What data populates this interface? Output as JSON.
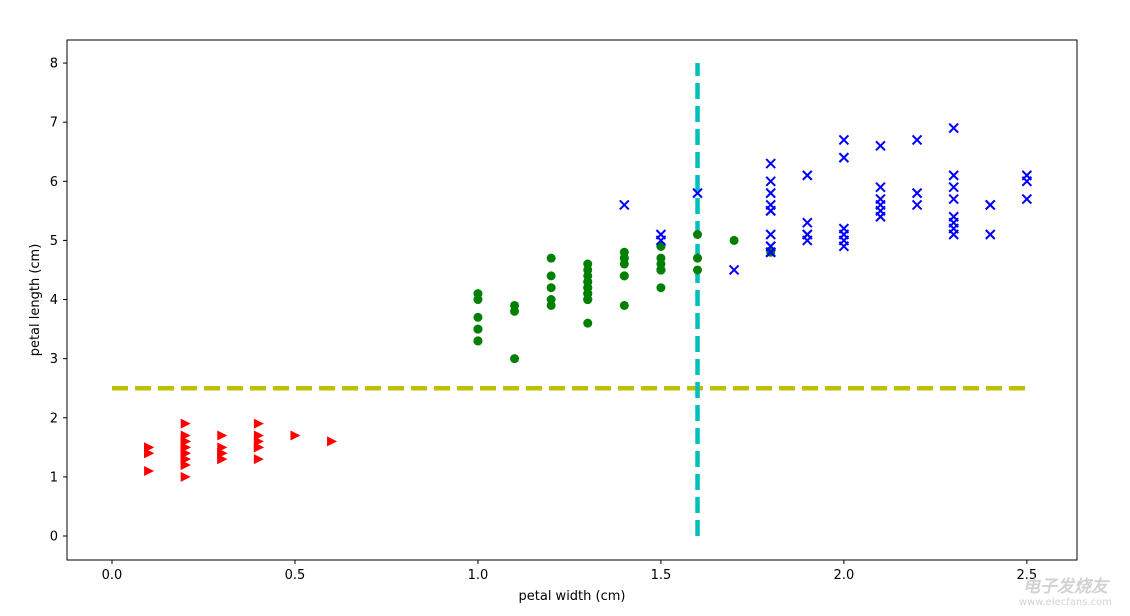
{
  "chart_data": {
    "type": "scatter",
    "title": "",
    "xlabel": "petal width (cm)",
    "ylabel": "petal length (cm)",
    "xlim": [
      -0.123,
      2.637
    ],
    "ylim": [
      -0.406,
      8.39
    ],
    "xticks": [
      0.0,
      0.5,
      1.0,
      1.5,
      2.0,
      2.5
    ],
    "xtick_labels": [
      "0.0",
      "0.5",
      "1.0",
      "1.5",
      "2.0",
      "2.5"
    ],
    "yticks": [
      0,
      1,
      2,
      3,
      4,
      5,
      6,
      7,
      8
    ],
    "ytick_labels": [
      "0",
      "1",
      "2",
      "3",
      "4",
      "5",
      "6",
      "7",
      "8"
    ],
    "grid": false,
    "series": [
      {
        "marker": "triangle-right",
        "color": "#ff0000",
        "x": [
          0.2,
          0.2,
          0.2,
          0.2,
          0.2,
          0.4,
          0.3,
          0.2,
          0.2,
          0.1,
          0.2,
          0.2,
          0.1,
          0.1,
          0.2,
          0.4,
          0.4,
          0.3,
          0.3,
          0.3,
          0.2,
          0.4,
          0.2,
          0.5,
          0.2,
          0.2,
          0.4,
          0.2,
          0.2,
          0.2,
          0.2,
          0.4,
          0.1,
          0.2,
          0.2,
          0.2,
          0.2,
          0.1,
          0.2,
          0.2,
          0.3,
          0.3,
          0.2,
          0.6,
          0.4,
          0.3,
          0.2,
          0.2,
          0.2,
          0.2
        ],
        "y": [
          1.4,
          1.4,
          1.3,
          1.5,
          1.4,
          1.7,
          1.4,
          1.5,
          1.4,
          1.5,
          1.5,
          1.6,
          1.4,
          1.1,
          1.2,
          1.5,
          1.3,
          1.4,
          1.7,
          1.5,
          1.7,
          1.5,
          1.0,
          1.7,
          1.9,
          1.6,
          1.6,
          1.5,
          1.4,
          1.6,
          1.6,
          1.5,
          1.5,
          1.4,
          1.5,
          1.2,
          1.3,
          1.4,
          1.3,
          1.5,
          1.3,
          1.3,
          1.3,
          1.6,
          1.9,
          1.4,
          1.6,
          1.4,
          1.5,
          1.4
        ]
      },
      {
        "marker": "circle",
        "color": "#008000",
        "x": [
          1.4,
          1.5,
          1.5,
          1.3,
          1.5,
          1.3,
          1.6,
          1.0,
          1.3,
          1.4,
          1.0,
          1.5,
          1.0,
          1.4,
          1.3,
          1.4,
          1.5,
          1.0,
          1.5,
          1.1,
          1.8,
          1.3,
          1.5,
          1.2,
          1.3,
          1.4,
          1.4,
          1.7,
          1.5,
          1.0,
          1.1,
          1.0,
          1.2,
          1.6,
          1.5,
          1.6,
          1.5,
          1.3,
          1.3,
          1.3,
          1.2,
          1.4,
          1.2,
          1.0,
          1.3,
          1.2,
          1.3,
          1.3,
          1.1,
          1.3
        ],
        "y": [
          4.7,
          4.5,
          4.9,
          4.0,
          4.6,
          4.5,
          4.7,
          3.3,
          4.6,
          3.9,
          3.5,
          4.2,
          4.0,
          4.7,
          3.6,
          4.4,
          4.5,
          4.1,
          4.5,
          3.9,
          4.8,
          4.0,
          4.9,
          4.7,
          4.3,
          4.4,
          4.8,
          5.0,
          4.5,
          3.5,
          3.8,
          3.7,
          3.9,
          5.1,
          4.5,
          4.5,
          4.7,
          4.4,
          4.1,
          4.0,
          4.4,
          4.6,
          4.0,
          3.3,
          4.2,
          4.2,
          4.2,
          4.3,
          3.0,
          4.1
        ]
      },
      {
        "marker": "x",
        "color": "#0000ff",
        "x": [
          2.5,
          1.9,
          2.1,
          1.8,
          2.2,
          2.1,
          1.7,
          1.8,
          1.8,
          2.5,
          2.0,
          1.9,
          2.1,
          2.0,
          2.4,
          2.3,
          1.8,
          2.2,
          2.3,
          1.5,
          2.3,
          2.0,
          2.0,
          1.8,
          2.1,
          1.8,
          1.8,
          1.8,
          2.1,
          1.6,
          1.9,
          2.0,
          2.2,
          1.5,
          1.4,
          2.3,
          2.4,
          1.8,
          1.8,
          2.1,
          2.4,
          2.3,
          1.9,
          2.3,
          2.5,
          2.3,
          1.9,
          2.0,
          2.3,
          1.8
        ],
        "y": [
          6.0,
          5.1,
          5.9,
          5.6,
          5.8,
          6.6,
          4.5,
          6.3,
          5.8,
          6.1,
          5.1,
          5.3,
          5.5,
          5.0,
          5.1,
          5.3,
          5.5,
          6.7,
          6.9,
          5.0,
          5.7,
          4.9,
          6.7,
          4.9,
          5.7,
          6.0,
          4.8,
          4.9,
          5.6,
          5.8,
          6.1,
          6.4,
          5.6,
          5.1,
          5.6,
          6.1,
          5.6,
          5.5,
          4.8,
          5.4,
          5.6,
          5.1,
          5.1,
          5.9,
          5.7,
          5.2,
          5.0,
          5.2,
          5.4,
          5.1
        ]
      }
    ],
    "lines": [
      {
        "orientation": "horizontal",
        "y": 2.5,
        "x_range": [
          0,
          2.5
        ],
        "style": "dashed",
        "color": "#bfbf00"
      },
      {
        "orientation": "vertical",
        "x": 1.6,
        "y_range": [
          0,
          8
        ],
        "style": "dashed",
        "color": "#00bfbf"
      }
    ]
  },
  "watermark": {
    "cn": "电子发烧友",
    "url": "www.elecfans.com"
  }
}
